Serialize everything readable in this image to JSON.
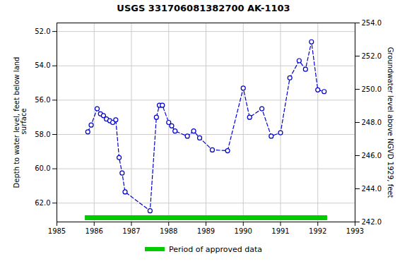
{
  "chart_data": {
    "type": "line",
    "title": "USGS 331706081382700 AK-1103",
    "ylabel": "Depth to water level, feet below land\n surface",
    "y2label": "Groundwater level above NGVD 1929, feet",
    "xlim": [
      1985,
      1993
    ],
    "xticks": [
      1985,
      1986,
      1987,
      1988,
      1989,
      1990,
      1991,
      1992,
      1993
    ],
    "ylim": [
      63.1,
      51.5
    ],
    "yticks": [
      {
        "value": 52.0,
        "label": "52.0"
      },
      {
        "value": 54.0,
        "label": "54.0"
      },
      {
        "value": 56.0,
        "label": "56.0"
      },
      {
        "value": 58.0,
        "label": "58.0"
      },
      {
        "value": 60.0,
        "label": "60.0"
      },
      {
        "value": 62.0,
        "label": "62.0"
      }
    ],
    "y2lim": [
      242.0,
      254.0
    ],
    "y2ticks": [
      {
        "value": 242.0,
        "label": "242.0"
      },
      {
        "value": 244.0,
        "label": "244.0"
      },
      {
        "value": 246.0,
        "label": "246.0"
      },
      {
        "value": 248.0,
        "label": "248.0"
      },
      {
        "value": 250.0,
        "label": "250.0"
      },
      {
        "value": 252.0,
        "label": "252.0"
      },
      {
        "value": 254.0,
        "label": "254.0"
      }
    ],
    "grid": true,
    "legend": "bottom",
    "series": [
      {
        "color": "#0000cc",
        "marker": "circle",
        "line_style": "dashed",
        "x": [
          1985.83,
          1985.92,
          1986.08,
          1986.17,
          1986.25,
          1986.33,
          1986.42,
          1986.5,
          1986.58,
          1986.67,
          1986.75,
          1986.83,
          1987.5,
          1987.67,
          1987.75,
          1987.83,
          1988.0,
          1988.08,
          1988.17,
          1988.5,
          1988.67,
          1988.83,
          1989.17,
          1989.58,
          1990.0,
          1990.17,
          1990.5,
          1990.75,
          1991.0,
          1991.25,
          1991.5,
          1991.67,
          1991.83,
          1992.0,
          1992.17
        ],
        "values": [
          57.85,
          57.45,
          56.5,
          56.8,
          56.9,
          57.1,
          57.2,
          57.3,
          57.15,
          59.35,
          60.25,
          61.35,
          62.45,
          57.0,
          56.3,
          56.3,
          57.3,
          57.5,
          57.8,
          58.1,
          57.8,
          58.2,
          58.9,
          58.95,
          55.3,
          57.0,
          56.5,
          58.1,
          57.9,
          54.7,
          53.7,
          54.2,
          52.6,
          55.4,
          55.5
        ]
      },
      {
        "name": "Period of approved data",
        "color": "#00cc00",
        "line_style": "solid",
        "x": [
          1985.75,
          1992.25
        ],
        "values": [
          62.85,
          62.85
        ]
      }
    ]
  }
}
